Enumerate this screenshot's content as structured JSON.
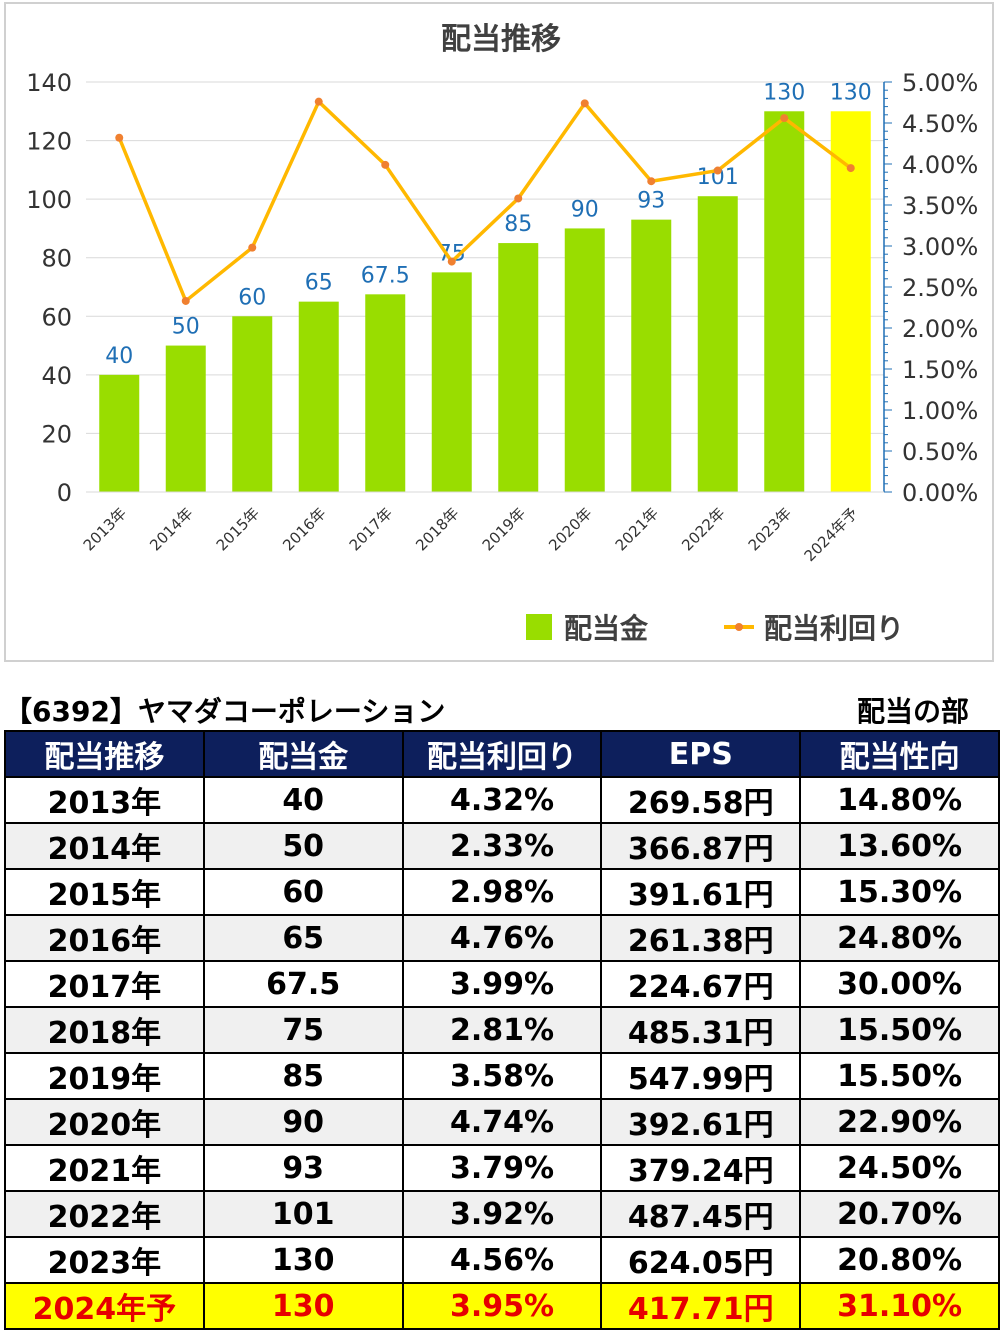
{
  "chart_data": {
    "type": "bar",
    "title": "配当推移",
    "categories": [
      "2013年",
      "2014年",
      "2015年",
      "2016年",
      "2017年",
      "2018年",
      "2019年",
      "2020年",
      "2021年",
      "2022年",
      "2023年",
      "2024年予"
    ],
    "series": [
      {
        "name": "配当金",
        "type": "bar",
        "axis": "left",
        "color": "#99dd00",
        "values": [
          40,
          50,
          60,
          65,
          67.5,
          75,
          85,
          90,
          93,
          101,
          130,
          130
        ],
        "value_labels": [
          "40",
          "50",
          "60",
          "65",
          "67.5",
          "75",
          "85",
          "90",
          "93",
          "101",
          "130",
          "130"
        ],
        "highlight_color": "#ffff00",
        "highlight_index": 11
      },
      {
        "name": "配当利回り",
        "type": "line",
        "axis": "right",
        "color": "#ffb800",
        "marker_color": "#f08030",
        "values": [
          4.32,
          2.33,
          2.98,
          4.76,
          3.99,
          2.81,
          3.58,
          4.74,
          3.79,
          3.92,
          4.56,
          3.95
        ]
      }
    ],
    "y_left": {
      "min": 0,
      "max": 140,
      "ticks": [
        "0",
        "20",
        "40",
        "60",
        "80",
        "100",
        "120",
        "140"
      ]
    },
    "y_right": {
      "min": 0,
      "max": 5,
      "ticks": [
        "0.00%",
        "0.50%",
        "1.00%",
        "1.50%",
        "2.00%",
        "2.50%",
        "3.00%",
        "3.50%",
        "4.00%",
        "4.50%",
        "5.00%"
      ]
    },
    "grid": true,
    "legend_position": "bottom-right",
    "label_color": "#1f6fb5"
  },
  "company_title": "【6392】ヤマダコーポレーション",
  "section_label": "配当の部",
  "table": {
    "headers": [
      "配当推移",
      "配当金",
      "配当利回り",
      "EPS",
      "配当性向"
    ],
    "rows": [
      [
        "2013年",
        "40",
        "4.32%",
        "269.58円",
        "14.80%"
      ],
      [
        "2014年",
        "50",
        "2.33%",
        "366.87円",
        "13.60%"
      ],
      [
        "2015年",
        "60",
        "2.98%",
        "391.61円",
        "15.30%"
      ],
      [
        "2016年",
        "65",
        "4.76%",
        "261.38円",
        "24.80%"
      ],
      [
        "2017年",
        "67.5",
        "3.99%",
        "224.67円",
        "30.00%"
      ],
      [
        "2018年",
        "75",
        "2.81%",
        "485.31円",
        "15.50%"
      ],
      [
        "2019年",
        "85",
        "3.58%",
        "547.99円",
        "15.50%"
      ],
      [
        "2020年",
        "90",
        "4.74%",
        "392.61円",
        "22.90%"
      ],
      [
        "2021年",
        "93",
        "3.79%",
        "379.24円",
        "24.50%"
      ],
      [
        "2022年",
        "101",
        "3.92%",
        "487.45円",
        "20.70%"
      ],
      [
        "2023年",
        "130",
        "4.56%",
        "624.05円",
        "20.80%"
      ],
      [
        "2024年予",
        "130",
        "3.95%",
        "417.71円",
        "31.10%"
      ]
    ],
    "header_bg": "#0d1f5c",
    "forecast_bg": "#ffff00",
    "forecast_text": "#e60000"
  }
}
